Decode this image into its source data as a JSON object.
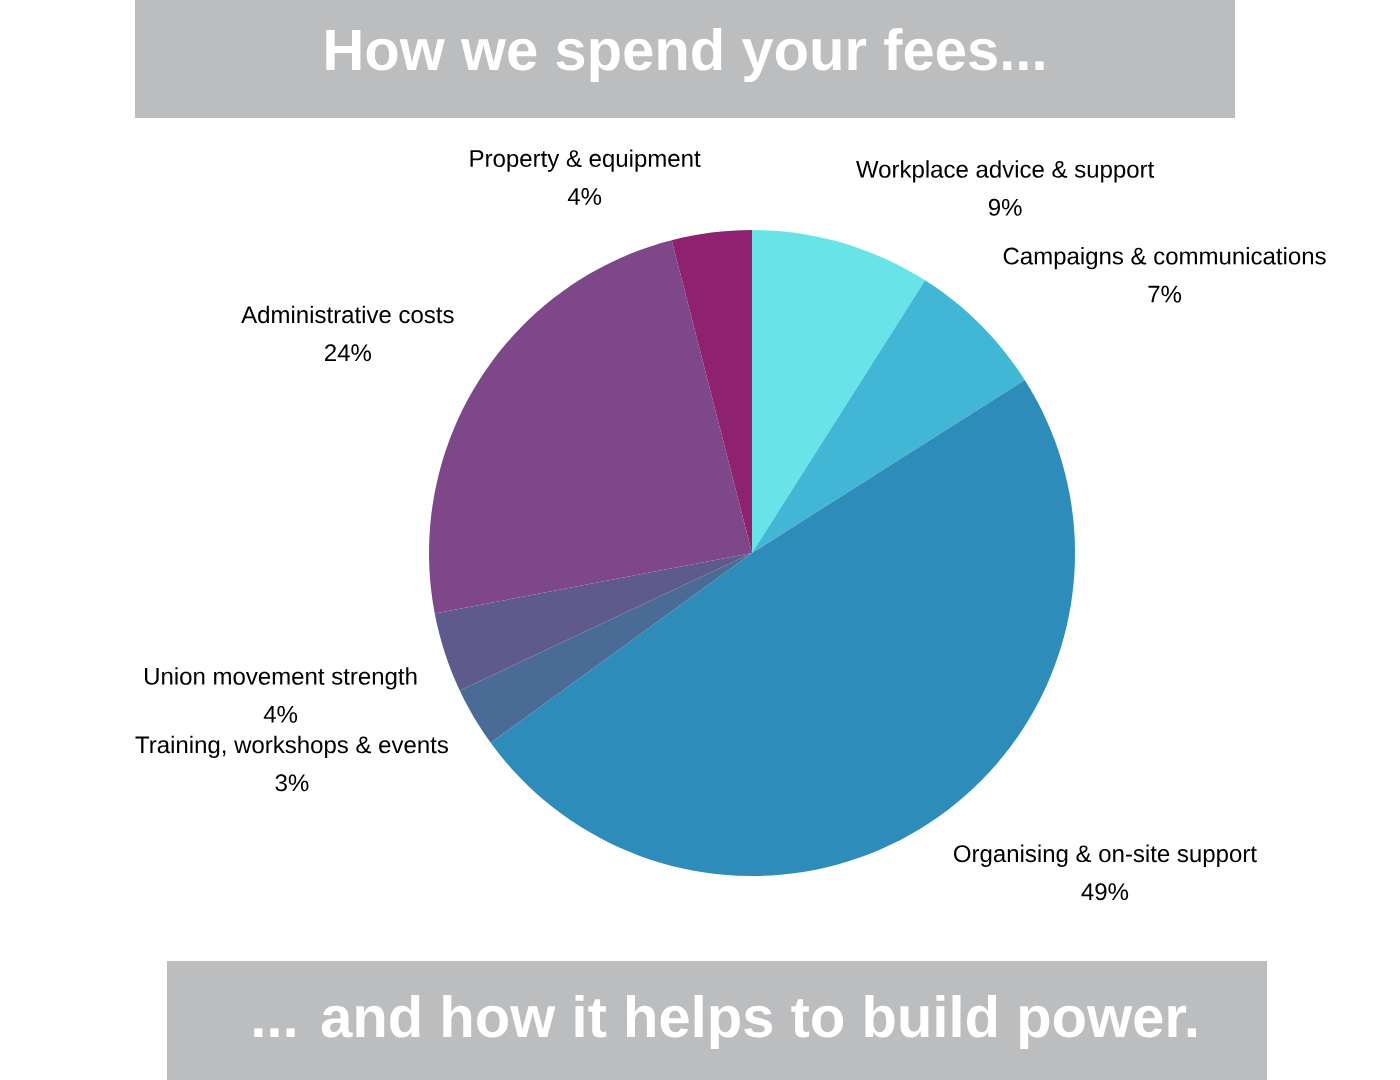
{
  "chart_data": {
    "type": "pie",
    "title": "How we spend your fees...",
    "annotations": [
      "... and how it helps to build power."
    ],
    "categories": [
      "Workplace advice & support",
      "Campaigns & communications",
      "Organising & on-site support",
      "Training, workshops & events",
      "Union movement strength",
      "Administrative costs",
      "Property & equipment"
    ],
    "values": [
      9,
      7,
      49,
      3,
      4,
      24,
      4
    ],
    "value_labels": [
      "9%",
      "7%",
      "49%",
      "3%",
      "4%",
      "24%",
      "4%"
    ],
    "colors": [
      "#68e4e8",
      "#41b6d5",
      "#2e8cba",
      "#4a6b96",
      "#5f5a8c",
      "#7e4789",
      "#8e2270"
    ]
  }
}
